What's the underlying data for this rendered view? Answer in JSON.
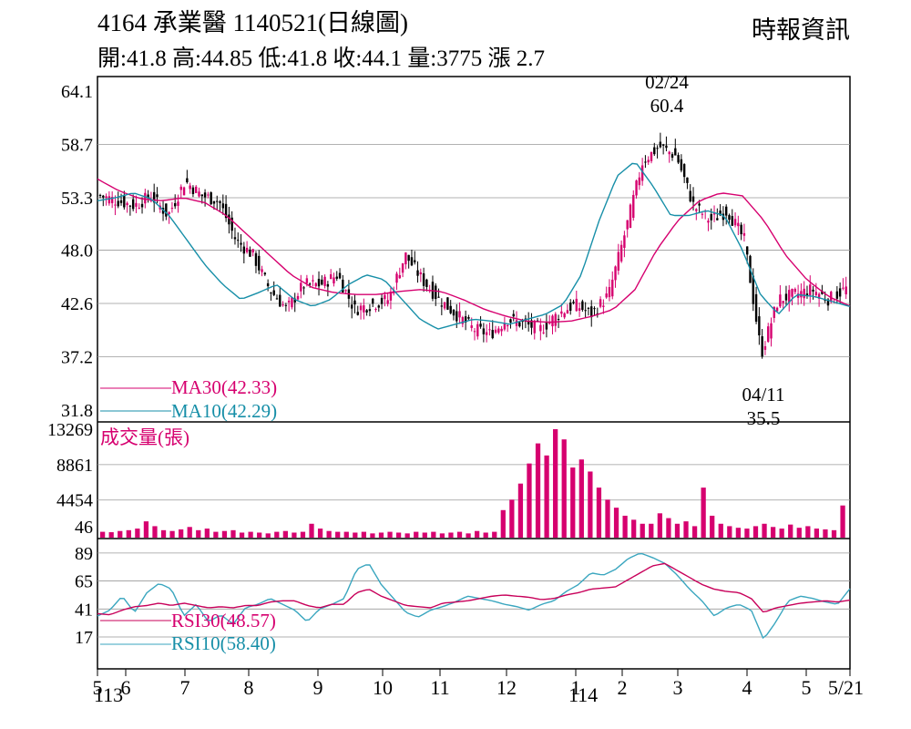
{
  "header": {
    "title": "4164  承業醫 1140521(日線圖)",
    "ohlc": "開:41.8 高:44.85 低:41.8 收:44.1 量:3775 漲 2.7",
    "source": "時報資訊"
  },
  "colors": {
    "up": "#d6006f",
    "down": "#000000",
    "ma30": "#d6006f",
    "ma10": "#178fa8",
    "rsi30": "#c8005a",
    "rsi10": "#3aa6bf",
    "volume": "#d6006f",
    "grid": "#999999"
  },
  "chart_data": [
    {
      "type": "candlestick",
      "panel": "price",
      "ylim": [
        31.8,
        64.1
      ],
      "yticks": [
        "64.1",
        "58.7",
        "53.3",
        "48.0",
        "42.6",
        "37.2",
        "31.8"
      ],
      "legend": [
        {
          "label": "MA30(42.33)",
          "color": "#d6006f"
        },
        {
          "label": "MA10(42.29)",
          "color": "#178fa8"
        }
      ],
      "annotations": [
        {
          "date": "02/24",
          "value": "60.4",
          "kind": "high"
        },
        {
          "date": "04/11",
          "value": "35.5",
          "kind": "low"
        }
      ],
      "x": [
        "5",
        "6",
        "7",
        "8",
        "9",
        "10",
        "11",
        "12",
        "1",
        "2",
        "3",
        "4",
        "5",
        "5/21"
      ],
      "close_path": [
        53.5,
        53.0,
        52.5,
        53.5,
        51.5,
        55.0,
        53.5,
        53.0,
        49.0,
        47.5,
        44.0,
        42.0,
        44.5,
        44.5,
        45.5,
        42.0,
        42.5,
        43.0,
        47.5,
        45.0,
        43.0,
        41.5,
        40.0,
        39.5,
        41.0,
        40.5,
        40.0,
        41.5,
        42.5,
        41.5,
        43.5,
        50.0,
        57.0,
        58.5,
        57.5,
        52.5,
        51.0,
        52.0,
        49.0,
        37.5,
        43.0,
        43.5,
        44.0,
        43.0,
        44.1
      ],
      "ma30": [
        55.2,
        54.0,
        53.2,
        53.0,
        53.3,
        52.8,
        51.5,
        49.5,
        47.5,
        45.5,
        44.2,
        43.7,
        43.5,
        43.5,
        43.8,
        44.0,
        43.8,
        43.0,
        42.0,
        41.3,
        40.8,
        40.7,
        40.8,
        41.3,
        42.0,
        44.0,
        48.0,
        51.0,
        53.0,
        53.8,
        53.5,
        51.0,
        47.5,
        45.0,
        43.3,
        42.33
      ],
      "ma10": [
        53.0,
        53.3,
        53.8,
        53.2,
        51.5,
        49.0,
        46.5,
        44.5,
        43.0,
        43.7,
        44.5,
        43.0,
        42.3,
        43.0,
        44.5,
        45.5,
        45.0,
        43.0,
        41.0,
        40.0,
        40.5,
        41.0,
        40.8,
        40.5,
        41.0,
        41.5,
        42.5,
        45.5,
        51.0,
        55.5,
        57.0,
        54.5,
        51.5,
        51.5,
        52.0,
        51.5,
        48.0,
        43.5,
        41.5,
        43.5,
        43.3,
        42.8,
        42.29
      ]
    },
    {
      "type": "bar",
      "panel": "volume",
      "label": "成交量(張)",
      "ylim": [
        46,
        13269
      ],
      "yticks": [
        "13269",
        "8861",
        "4454",
        "46"
      ],
      "values": [
        500,
        450,
        600,
        700,
        900,
        1800,
        1200,
        700,
        600,
        800,
        1100,
        700,
        900,
        500,
        600,
        700,
        400,
        500,
        400,
        300,
        500,
        600,
        400,
        500,
        1500,
        900,
        600,
        500,
        500,
        400,
        500,
        300,
        400,
        500,
        400,
        300,
        500,
        400,
        500,
        300,
        400,
        500,
        300,
        600,
        400,
        500,
        3200,
        4500,
        6500,
        9000,
        11500,
        10000,
        13269,
        12000,
        8500,
        9500,
        8000,
        6000,
        4500,
        3500,
        2500,
        2000,
        1500,
        1500,
        2800,
        2200,
        1500,
        1800,
        1200,
        6000,
        2500,
        1500,
        1200,
        1000,
        900,
        1200,
        1500,
        1100,
        900,
        1400,
        1000,
        1200,
        900,
        800,
        700,
        3775
      ]
    },
    {
      "type": "line",
      "panel": "rsi",
      "yticks": [
        "89",
        "65",
        "41",
        "17"
      ],
      "ylim": [
        10,
        92
      ],
      "series": [
        {
          "name": "RSI30(48.57)",
          "color": "#c8005a",
          "values": [
            37,
            36,
            40,
            43,
            44,
            46,
            44,
            46,
            44,
            42,
            43,
            42,
            44,
            44,
            47,
            48,
            48,
            44,
            42,
            45,
            45,
            55,
            58,
            52,
            48,
            44,
            43,
            42,
            46,
            47,
            48,
            50,
            52,
            53,
            52,
            51,
            49,
            50,
            53,
            55,
            58,
            59,
            60,
            66,
            72,
            78,
            80,
            74,
            68,
            62,
            58,
            56,
            55,
            50,
            38,
            42,
            44,
            46,
            47,
            48,
            47,
            48.57
          ]
        },
        {
          "name": "RSI10(58.40)",
          "color": "#3aa6bf",
          "values": [
            35,
            40,
            52,
            38,
            55,
            63,
            58,
            35,
            45,
            30,
            36,
            28,
            42,
            45,
            50,
            45,
            40,
            30,
            41,
            45,
            50,
            75,
            80,
            62,
            50,
            38,
            34,
            40,
            43,
            47,
            52,
            50,
            48,
            45,
            43,
            40,
            45,
            48,
            56,
            62,
            72,
            70,
            75,
            84,
            89,
            85,
            80,
            70,
            58,
            48,
            35,
            42,
            45,
            40,
            15,
            30,
            48,
            52,
            50,
            47,
            45,
            58.4
          ]
        }
      ]
    }
  ]
}
